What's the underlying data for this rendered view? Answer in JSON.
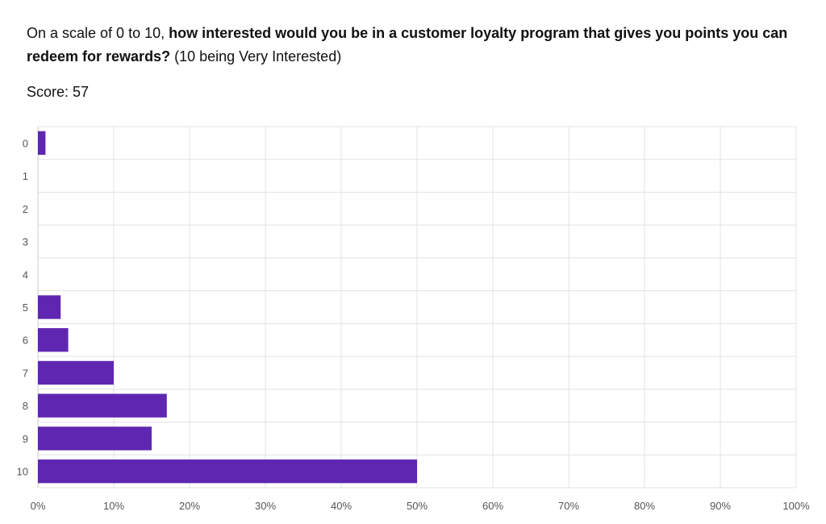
{
  "question": {
    "prefix": "On a scale of 0 to 10, ",
    "bold": "how interested would you be in a customer loyalty program that gives you points you can redeem for rewards?",
    "suffix": " (10 being Very Interested)"
  },
  "score": {
    "label": "Score: 57"
  },
  "chart_data": {
    "type": "bar",
    "orientation": "horizontal",
    "title": "On a scale of 0 to 10, how interested would you be in a customer loyalty program that gives you points you can redeem for rewards? (10 being Very Interested)",
    "subtitle": "Score: 57",
    "categories": [
      "0",
      "1",
      "2",
      "3",
      "4",
      "5",
      "6",
      "7",
      "8",
      "9",
      "10"
    ],
    "values": [
      1,
      0,
      0,
      0,
      0,
      3,
      4,
      10,
      17,
      15,
      50
    ],
    "value_unit": "%",
    "xlim": [
      0,
      100
    ],
    "x_ticks": [
      "0%",
      "10%",
      "20%",
      "30%",
      "40%",
      "50%",
      "60%",
      "70%",
      "80%",
      "90%",
      "100%"
    ],
    "xlabel": "",
    "ylabel": "",
    "grid": true,
    "bar_color": "#5f27b1",
    "grid_color": "#e3e3e3",
    "axis_color": "#cccccc"
  }
}
